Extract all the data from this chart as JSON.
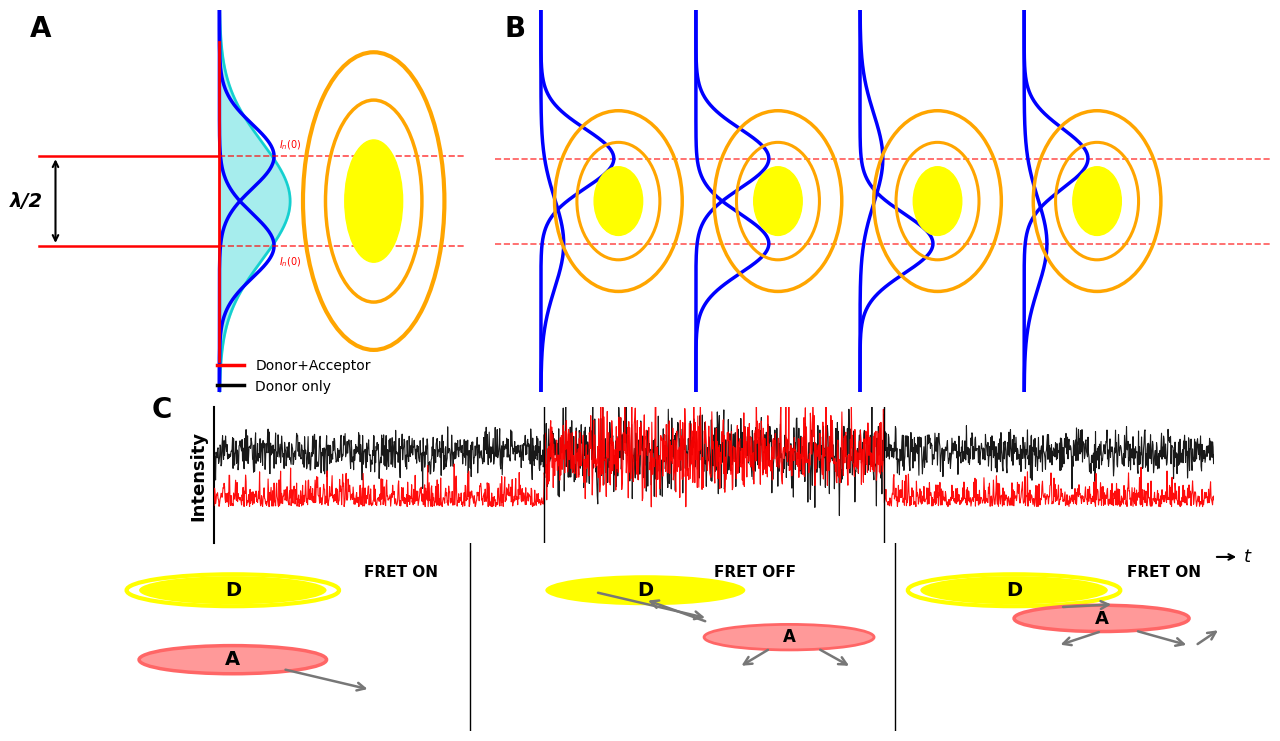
{
  "panel_A_label": "A",
  "panel_B_label": "B",
  "panel_C_label": "C",
  "lambda_label": "λ/2",
  "orange_color": "#FFA500",
  "yellow_color": "#FFFF00",
  "blue_color": "#0000CC",
  "cyan_color": "#00CCCC",
  "red_color": "#FF0000",
  "bg_color": "#FFFFFF",
  "fret_on_label": "FRET ON",
  "fret_off_label": "FRET OFF",
  "intensity_label": "Intensity",
  "time_label": "t",
  "legend_donor_acceptor": "Donor+Acceptor",
  "legend_donor_only": "Donor only",
  "pink_color": "#FF9999",
  "pink_edge": "#FF6666",
  "gray_arrow": "#888888"
}
